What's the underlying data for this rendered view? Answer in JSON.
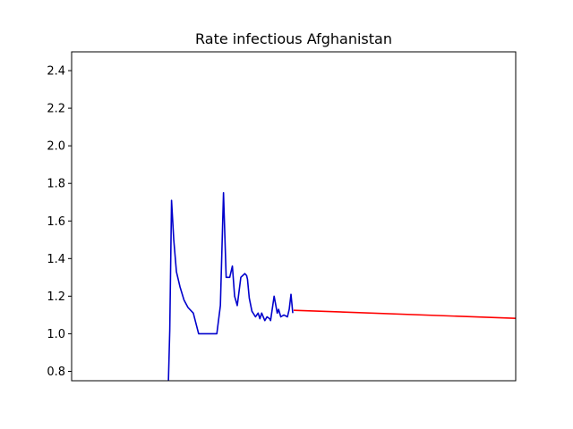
{
  "chart_data": {
    "type": "line",
    "title": "Rate infectious Afghanistan",
    "xlabel": "",
    "ylabel": "",
    "xlim": [
      0,
      100
    ],
    "ylim": [
      0.75,
      2.5
    ],
    "yticks": [
      0.8,
      1.0,
      1.2,
      1.4,
      1.6,
      1.8,
      2.0,
      2.2,
      2.4
    ],
    "ytick_labels": [
      "0.8",
      "1.0",
      "1.2",
      "1.4",
      "1.6",
      "1.8",
      "2.0",
      "2.2",
      "2.4"
    ],
    "grid": false,
    "series": [
      {
        "color": "#0000cc",
        "x": [
          21.8,
          22.1,
          22.5,
          23.0,
          23.6,
          24.4,
          25.3,
          26.2,
          27.4,
          28.6,
          30.5,
          31.5,
          32.7,
          33.5,
          34.2,
          34.8,
          35.6,
          36.2,
          36.7,
          37.3,
          38.1,
          39.0,
          39.4,
          39.6,
          40.0,
          40.6,
          41.4,
          42.0,
          42.4,
          42.8,
          43.5,
          44.0,
          44.6,
          44.8,
          45.6,
          46.3,
          46.6,
          47.1,
          47.8,
          48.6,
          49.0,
          49.4,
          49.8
        ],
        "values": [
          0.75,
          1.02,
          1.71,
          1.5,
          1.33,
          1.25,
          1.18,
          1.14,
          1.11,
          1.0,
          1.0,
          1.0,
          1.0,
          1.15,
          1.75,
          1.3,
          1.3,
          1.36,
          1.2,
          1.15,
          1.3,
          1.32,
          1.31,
          1.29,
          1.19,
          1.12,
          1.09,
          1.11,
          1.08,
          1.11,
          1.07,
          1.09,
          1.08,
          1.07,
          1.2,
          1.11,
          1.13,
          1.09,
          1.1,
          1.09,
          1.13,
          1.21,
          1.11
        ]
      },
      {
        "color": "#ff0000",
        "x": [
          50.0,
          100.0
        ],
        "values": [
          1.125,
          1.082
        ]
      }
    ]
  }
}
